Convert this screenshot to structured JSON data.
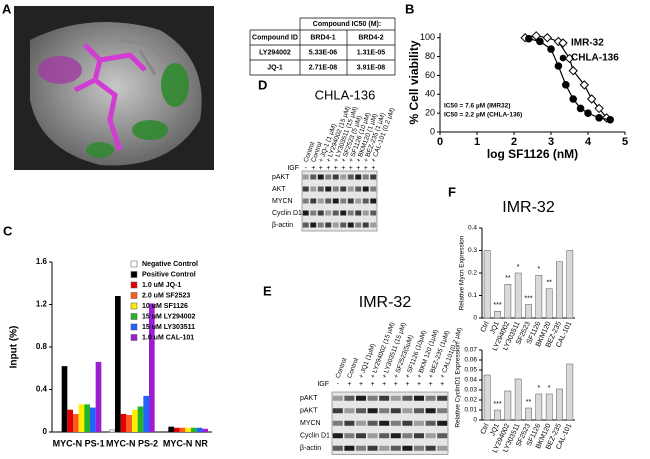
{
  "panel_labels": [
    "A",
    "B",
    "C",
    "D",
    "E",
    "F"
  ],
  "table": {
    "title": "Compound IC50 (M):",
    "columns": [
      "Compound ID",
      "BRD4-1",
      "BRD4-2"
    ],
    "rows": [
      [
        "LY294002",
        "5.33E-06",
        "1.31E-05"
      ],
      [
        "JQ-1",
        "2.71E-08",
        "3.91E-08"
      ]
    ]
  },
  "blot_d": {
    "title": "CHLA-136",
    "igf_label": "IGF",
    "igf": [
      "-",
      "+",
      "+",
      "+",
      "+",
      "+",
      "+",
      "+",
      "+",
      "+"
    ],
    "lanes": [
      "Control",
      "Control",
      "+ JQ-1 (1 µM)",
      "+ LY294002 (15 µM)",
      "+ LY303511 (15 µM)",
      "+ SF2523 (5 µM)",
      "+ SF1126 (10 µM)",
      "+ BKM120 (1 µM)",
      "+ BEZ-235 (1 µM)",
      "+ CAL-101 (0.2 µM)"
    ],
    "rows": [
      "pAKT",
      "AKT",
      "MYCN",
      "Cyclin D1",
      "β-actin"
    ]
  },
  "blot_e": {
    "title": "IMR-32",
    "igf_label": "IGF",
    "igf": [
      "-",
      "+",
      "+",
      "+",
      "+",
      "+",
      "+",
      "+",
      "+",
      "+"
    ],
    "lanes": [
      "Control",
      "Control",
      "+ JQ1 (1µM)",
      "+ LY294002 (15 µM)",
      "+ LY303511 (15 µM)",
      "+ SF2523(5µM)",
      "+ SF1126 (10µM)",
      "+ BKM 120 (1µM)",
      "+ BEZ-235 (1µM)",
      "+ CAL101(0.2 µM)"
    ],
    "rows": [
      "pAKT",
      "pAKT",
      "MYCN",
      "Cyclin D1",
      "β-actin"
    ]
  },
  "chart_data": [
    {
      "type": "line",
      "xlabel": "log SF1126 (nM)",
      "ylabel": "% Cell viability",
      "xlim": [
        0,
        5
      ],
      "xticks": [
        0,
        1,
        2,
        3,
        4,
        5
      ],
      "ylim": [
        0,
        105
      ],
      "yticks": [
        0,
        20,
        40,
        60,
        80,
        100
      ],
      "legend": "upper right",
      "annotations": [
        "IC50 = 7.6 µM (IMR32)",
        "IC50 = 2.2 µM (CHLA-136)"
      ],
      "series": [
        {
          "name": "IMR-32",
          "color": "#000000",
          "marker": "open-diamond",
          "x": [
            2.3,
            2.6,
            2.9,
            3.2,
            3.5,
            3.6,
            3.9,
            4.1,
            4.3,
            4.5
          ],
          "values": [
            100,
            102,
            100,
            96,
            78,
            65,
            50,
            35,
            25,
            15
          ]
        },
        {
          "name": "CHLA-136",
          "color": "#000000",
          "marker": "circle",
          "x": [
            2.4,
            2.7,
            3.0,
            3.2,
            3.4,
            3.6,
            3.8,
            4.0,
            4.3,
            4.6
          ],
          "values": [
            99,
            96,
            88,
            70,
            50,
            35,
            25,
            20,
            15,
            13
          ]
        }
      ]
    },
    {
      "type": "bar",
      "ylabel": "Input (%)",
      "ylim": [
        0,
        1.6
      ],
      "yticks": [
        0,
        0.4,
        0.8,
        1.2,
        1.6
      ],
      "legend": "upper right",
      "categories": [
        "MYC-N PS-1",
        "MYC-N PS-2",
        "MYC-N NR"
      ],
      "series": [
        {
          "name": "Negative Control",
          "color": "#ffffff",
          "values": [
            0.0,
            0.02,
            0.0
          ]
        },
        {
          "name": "Positive Control",
          "color": "#000000",
          "values": [
            0.62,
            1.28,
            0.05
          ]
        },
        {
          "name": "1.0 uM JQ-1",
          "color": "#e00000",
          "values": [
            0.21,
            0.17,
            0.04
          ]
        },
        {
          "name": "2.0 uM SF2523",
          "color": "#ff5a1e",
          "values": [
            0.17,
            0.16,
            0.04
          ]
        },
        {
          "name": "10 uM SF1126",
          "color": "#ffee00",
          "values": [
            0.26,
            0.21,
            0.04
          ]
        },
        {
          "name": "15 uM LY294002",
          "color": "#22b422",
          "values": [
            0.26,
            0.24,
            0.04
          ]
        },
        {
          "name": "15 uM LY303511",
          "color": "#1e64ff",
          "values": [
            0.23,
            0.34,
            0.04
          ]
        },
        {
          "name": "1.0 uM CAL-101",
          "color": "#9b1fd0",
          "values": [
            0.66,
            1.21,
            0.03
          ]
        }
      ]
    },
    {
      "type": "bar",
      "title": "IMR-32",
      "ylabel": "Relative Mycn Expression",
      "ylim": [
        0,
        0.4
      ],
      "yticks": [
        0,
        0.1,
        0.2,
        0.3,
        0.4
      ],
      "color": "#d9d9d9",
      "categories": [
        "Ctrl",
        "JQ1",
        "LY294002",
        "LY303511",
        "SF2523",
        "SF1126",
        "BKM120",
        "BEZ-235",
        "CAL-101"
      ],
      "values": [
        0.3,
        0.03,
        0.15,
        0.2,
        0.06,
        0.19,
        0.13,
        0.25,
        0.3
      ],
      "significance": [
        null,
        "***",
        "**",
        "*",
        "***",
        "*",
        "**",
        null,
        null
      ]
    },
    {
      "type": "bar",
      "ylabel": "Relative CyclinD1 Expression",
      "ylim": [
        0,
        0.07
      ],
      "yticks": [
        0,
        0.01,
        0.02,
        0.03,
        0.04,
        0.05,
        0.06,
        0.07
      ],
      "color": "#d9d9d9",
      "categories": [
        "Ctrl",
        "JQ1",
        "LY294002",
        "LY303511",
        "SF2523",
        "SF1126",
        "BKM120",
        "BEZ-235",
        "CAL-101"
      ],
      "values": [
        0.045,
        0.01,
        0.029,
        0.041,
        0.012,
        0.026,
        0.026,
        0.031,
        0.056
      ],
      "significance": [
        null,
        "***",
        null,
        null,
        "**",
        "*",
        "*",
        null,
        null
      ]
    }
  ]
}
